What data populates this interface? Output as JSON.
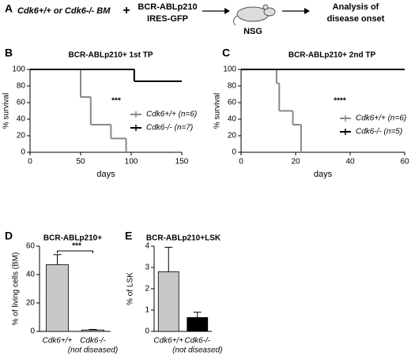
{
  "panel_a": {
    "label": "A",
    "source": "Cdk6+/+ or Cdk6-/- BM",
    "plus": "+",
    "vector": [
      "BCR-ABLp210",
      "IRES-GFP"
    ],
    "host": "NSG",
    "readout": [
      "Analysis of",
      "disease onset"
    ]
  },
  "chart_data": [
    {
      "panel": "B",
      "type": "step",
      "title": "BCR-ABLp210+ 1st TP",
      "xlabel": "days",
      "ylabel": "% survival",
      "xlim": [
        0,
        150
      ],
      "xticks": [
        0,
        50,
        100,
        150
      ],
      "ylim": [
        0,
        100
      ],
      "yticks": [
        0,
        20,
        40,
        60,
        80,
        100
      ],
      "annotations": [
        "***"
      ],
      "series": [
        {
          "name": "Cdk6+/+ (n=6)",
          "color": "#888888",
          "x": [
            0,
            50,
            60,
            80,
            95
          ],
          "values": [
            100,
            66.7,
            33.3,
            16.7,
            0
          ]
        },
        {
          "name": "Cdk6-/- (n=7)",
          "color": "#000000",
          "x": [
            0,
            103,
            150
          ],
          "values": [
            100,
            85.7,
            85.7
          ]
        }
      ]
    },
    {
      "panel": "C",
      "type": "step",
      "title": "BCR-ABLp210+ 2nd TP",
      "xlabel": "days",
      "ylabel": "% survival",
      "xlim": [
        0,
        60
      ],
      "xticks": [
        0,
        20,
        40,
        60
      ],
      "ylim": [
        0,
        100
      ],
      "yticks": [
        0,
        20,
        40,
        60,
        80,
        100
      ],
      "annotations": [
        "****"
      ],
      "series": [
        {
          "name": "Cdk6+/+ (n=6)",
          "color": "#888888",
          "x": [
            0,
            13,
            14,
            19,
            22
          ],
          "values": [
            100,
            83.3,
            50,
            33.3,
            0
          ]
        },
        {
          "name": "Cdk6-/- (n=5)",
          "color": "#000000",
          "x": [
            0,
            60
          ],
          "values": [
            100,
            100
          ]
        }
      ]
    },
    {
      "panel": "D",
      "type": "bar",
      "title": "BCR-ABLp210+",
      "ylabel": "% of living cells (BM)",
      "categories": [
        "Cdk6+/+",
        "Cdk6-/-"
      ],
      "category_notes": [
        null,
        "(not diseased)"
      ],
      "values": [
        47,
        1
      ],
      "errors": [
        7,
        0.4
      ],
      "colors": [
        "#c8c8c8",
        "#c8c8c8"
      ],
      "ylim": [
        0,
        60
      ],
      "yticks": [
        0,
        20,
        40,
        60
      ],
      "annotations": [
        "***"
      ]
    },
    {
      "panel": "E",
      "type": "bar",
      "title": "BCR-ABLp210+LSK",
      "ylabel": "% of LSK",
      "categories": [
        "Cdk6+/+",
        "Cdk6-/-"
      ],
      "category_notes": [
        null,
        "(not diseased)"
      ],
      "values": [
        2.8,
        0.65
      ],
      "errors": [
        1.15,
        0.25
      ],
      "colors": [
        "#c8c8c8",
        "#000000"
      ],
      "ylim": [
        0,
        4
      ],
      "yticks": [
        0,
        1,
        2,
        3,
        4
      ]
    }
  ]
}
